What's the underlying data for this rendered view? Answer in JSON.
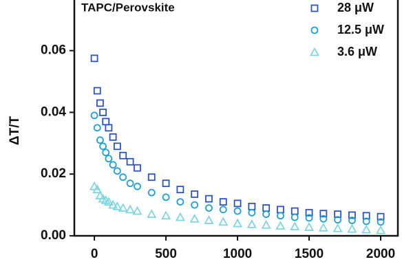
{
  "chart_data": {
    "type": "scatter",
    "title": "TAPC/Perovskite",
    "ylabel": "ΔT/T",
    "x": [
      0,
      20,
      40,
      60,
      80,
      100,
      130,
      160,
      200,
      250,
      300,
      400,
      500,
      600,
      700,
      800,
      900,
      1000,
      1100,
      1200,
      1300,
      1400,
      1500,
      1600,
      1700,
      1800,
      1900,
      2000
    ],
    "series": [
      {
        "name": "28 μW",
        "color": "#2a52c8",
        "marker": "square",
        "values": [
          0.0575,
          0.047,
          0.043,
          0.04,
          0.037,
          0.035,
          0.032,
          0.029,
          0.026,
          0.024,
          0.022,
          0.019,
          0.017,
          0.015,
          0.0135,
          0.012,
          0.011,
          0.0105,
          0.0095,
          0.009,
          0.0085,
          0.008,
          0.0075,
          0.0072,
          0.007,
          0.0067,
          0.0065,
          0.0062
        ]
      },
      {
        "name": "12.5 μW",
        "color": "#1aa0d8",
        "marker": "circle",
        "values": [
          0.039,
          0.035,
          0.031,
          0.029,
          0.027,
          0.025,
          0.023,
          0.021,
          0.019,
          0.017,
          0.016,
          0.014,
          0.0125,
          0.011,
          0.01,
          0.009,
          0.0085,
          0.008,
          0.0075,
          0.007,
          0.0065,
          0.006,
          0.0058,
          0.0055,
          0.0052,
          0.005,
          0.0047,
          0.0045
        ]
      },
      {
        "name": "3.6 μW",
        "color": "#7fd6e2",
        "marker": "triangle",
        "values": [
          0.016,
          0.015,
          0.013,
          0.012,
          0.0115,
          0.011,
          0.01,
          0.0095,
          0.009,
          0.0085,
          0.008,
          0.007,
          0.0065,
          0.006,
          0.0055,
          0.005,
          0.0045,
          0.004,
          0.0037,
          0.0035,
          0.0032,
          0.003,
          0.0028,
          0.0026,
          0.0024,
          0.0022,
          0.002,
          0.0018
        ]
      }
    ],
    "xlim": [
      -140,
      2120
    ],
    "xticks": [
      0,
      500,
      1000,
      1500,
      2000
    ],
    "ylim": [
      0,
      0.0764
    ],
    "yticks": [
      {
        "value": 0,
        "label": "0.00"
      },
      {
        "value": 0.02,
        "label": "0.02"
      },
      {
        "value": 0.04,
        "label": "0.04"
      },
      {
        "value": 0.06,
        "label": "0.06"
      }
    ],
    "legend": "upper right"
  }
}
